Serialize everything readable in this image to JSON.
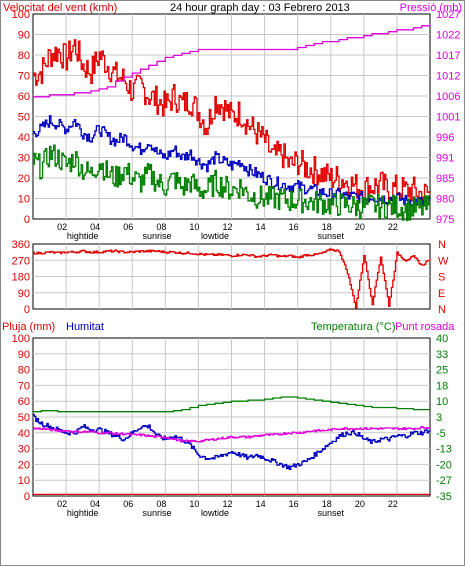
{
  "chart_data": [
    {
      "type": "line",
      "title": "24 hour graph day : 03 Febrero 2013",
      "left_axis_label": "Velocitat del vent (kmh)",
      "right_axis_label": "Pressió (mb)",
      "left_ylim": [
        0,
        100
      ],
      "right_ylim": [
        975,
        1027
      ],
      "left_ticks": [
        "0",
        "10",
        "20",
        "30",
        "40",
        "50",
        "60",
        "70",
        "80",
        "90",
        "100"
      ],
      "right_ticks": [
        "975",
        "980",
        "985",
        "991",
        "996",
        "1001",
        "1006",
        "1012",
        "1017",
        "1022",
        "1027"
      ],
      "x_ticks": [
        "02",
        "04",
        "06",
        "08",
        "10",
        "12",
        "14",
        "16",
        "18",
        "20",
        "22",
        ""
      ],
      "events": [
        {
          "label": "hightide",
          "hour": 3.0
        },
        {
          "label": "sunrise",
          "hour": 7.5
        },
        {
          "label": "lowtide",
          "hour": 11.0
        },
        {
          "label": "sunset",
          "hour": 18.0
        }
      ],
      "x": [
        0,
        0.5,
        1,
        1.5,
        2,
        2.5,
        3,
        3.5,
        4,
        4.5,
        5,
        5.5,
        6,
        6.5,
        7,
        7.5,
        8,
        8.5,
        9,
        9.5,
        10,
        10.5,
        11,
        11.5,
        12,
        12.5,
        13,
        13.5,
        14,
        14.5,
        15,
        15.5,
        16,
        16.5,
        17,
        17.5,
        18,
        18.5,
        19,
        19.5,
        20,
        20.5,
        21,
        21.5,
        22,
        22.5,
        23,
        23.5,
        24
      ],
      "series": [
        {
          "name": "gust",
          "color": "#e00000",
          "axis": "left",
          "values": [
            70,
            72,
            80,
            82,
            78,
            85,
            75,
            72,
            80,
            75,
            70,
            68,
            62,
            65,
            60,
            58,
            55,
            60,
            56,
            58,
            52,
            45,
            58,
            55,
            50,
            52,
            46,
            42,
            38,
            30,
            32,
            26,
            28,
            25,
            24,
            22,
            20,
            20,
            18,
            16,
            15,
            16,
            17,
            14,
            15,
            14,
            14,
            12,
            13
          ]
        },
        {
          "name": "average",
          "color": "#0000c0",
          "axis": "left",
          "values": [
            42,
            44,
            48,
            46,
            44,
            48,
            42,
            40,
            44,
            40,
            38,
            40,
            36,
            34,
            38,
            32,
            30,
            34,
            30,
            32,
            28,
            26,
            30,
            28,
            26,
            28,
            24,
            22,
            20,
            18,
            17,
            16,
            16,
            15,
            14,
            13,
            12,
            12,
            11,
            11,
            10,
            11,
            10,
            10,
            10,
            9,
            9,
            8,
            9
          ]
        },
        {
          "name": "minimum",
          "color": "#008000",
          "axis": "left",
          "values": [
            28,
            25,
            32,
            30,
            26,
            30,
            24,
            22,
            28,
            22,
            20,
            24,
            20,
            18,
            22,
            18,
            16,
            20,
            15,
            18,
            14,
            14,
            18,
            16,
            14,
            16,
            12,
            11,
            10,
            10,
            10,
            9,
            9,
            9,
            8,
            8,
            7,
            7,
            7,
            6,
            6,
            7,
            6,
            6,
            6,
            5,
            5,
            5,
            6
          ]
        },
        {
          "name": "pressure",
          "color": "#e000e0",
          "axis": "right",
          "values": [
            1006,
            1006,
            1006.5,
            1006.5,
            1006.5,
            1007,
            1007,
            1007.5,
            1008,
            1008.5,
            1010,
            1011,
            1012,
            1013,
            1014,
            1015,
            1016,
            1016.5,
            1017,
            1017.5,
            1018,
            1018,
            1018,
            1018,
            1018,
            1018,
            1018,
            1018,
            1018,
            1018,
            1018,
            1018,
            1018.5,
            1019,
            1019.5,
            1020,
            1020,
            1020.5,
            1021,
            1021,
            1021.5,
            1022,
            1022,
            1022.5,
            1023,
            1023,
            1023.5,
            1024,
            1024.5
          ]
        }
      ]
    },
    {
      "type": "line",
      "left_ylim": [
        0,
        360
      ],
      "left_ticks": [
        "0",
        "90",
        "180",
        "270",
        "360"
      ],
      "right_labels": [
        "N",
        "W",
        "S",
        "E",
        "N"
      ],
      "x": [
        0,
        0.5,
        1,
        1.5,
        2,
        2.5,
        3,
        3.5,
        4,
        4.5,
        5,
        5.5,
        6,
        6.5,
        7,
        7.5,
        8,
        8.5,
        9,
        9.5,
        10,
        10.5,
        11,
        11.5,
        12,
        12.5,
        13,
        13.5,
        14,
        14.5,
        15,
        15.5,
        16,
        16.5,
        17,
        17.5,
        18,
        18.5,
        19,
        19.5,
        20,
        20.5,
        21,
        21.5,
        22,
        22.5,
        23,
        23.5,
        24
      ],
      "series": [
        {
          "name": "direction",
          "color": "#e00000",
          "values": [
            310,
            310,
            315,
            310,
            315,
            315,
            320,
            315,
            315,
            320,
            320,
            315,
            315,
            320,
            320,
            320,
            315,
            315,
            310,
            310,
            305,
            300,
            300,
            300,
            295,
            300,
            300,
            290,
            295,
            300,
            290,
            295,
            285,
            300,
            300,
            310,
            330,
            320,
            200,
            10,
            300,
            30,
            290,
            20,
            310,
            270,
            290,
            240,
            280
          ]
        }
      ]
    },
    {
      "type": "line",
      "left_axis_label": "Pluja (mm)",
      "left_axis_label_2": "Humitat",
      "right_axis_label": "Temperatura (°C)",
      "right_axis_label_2": "Punt rosada",
      "left_ylim": [
        0,
        100
      ],
      "right_ylim": [
        -35,
        40
      ],
      "left_ticks": [
        "0",
        "10",
        "20",
        "30",
        "40",
        "50",
        "60",
        "70",
        "80",
        "90",
        "100"
      ],
      "right_ticks": [
        "-35",
        "-27",
        "-20",
        "-13",
        "-5",
        "3",
        "10",
        "18",
        "25",
        "33",
        "40"
      ],
      "x_ticks": [
        "02",
        "04",
        "06",
        "08",
        "10",
        "12",
        "14",
        "16",
        "18",
        "20",
        "22",
        ""
      ],
      "events": [
        {
          "label": "hightide",
          "hour": 3.0
        },
        {
          "label": "sunrise",
          "hour": 7.5
        },
        {
          "label": "lowtide",
          "hour": 11.0
        },
        {
          "label": "sunset",
          "hour": 18.0
        }
      ],
      "x": [
        0,
        0.5,
        1,
        1.5,
        2,
        2.5,
        3,
        3.5,
        4,
        4.5,
        5,
        5.5,
        6,
        6.5,
        7,
        7.5,
        8,
        8.5,
        9,
        9.5,
        10,
        10.5,
        11,
        11.5,
        12,
        12.5,
        13,
        13.5,
        14,
        14.5,
        15,
        15.5,
        16,
        16.5,
        17,
        17.5,
        18,
        18.5,
        19,
        19.5,
        20,
        20.5,
        21,
        21.5,
        22,
        22.5,
        23,
        23.5,
        24
      ],
      "series": [
        {
          "name": "rain",
          "color": "#e00000",
          "axis": "left",
          "values": [
            1,
            1,
            1,
            1,
            1,
            1,
            1,
            1,
            1,
            1,
            1,
            1,
            1,
            1,
            1,
            1,
            1,
            1,
            1,
            1,
            1,
            1,
            1,
            1,
            1,
            1,
            1,
            1,
            1,
            1,
            1,
            1,
            1,
            1,
            1,
            1,
            1,
            1,
            1,
            1,
            1,
            1,
            1,
            1,
            1,
            1,
            1,
            1,
            1
          ]
        },
        {
          "name": "humidity",
          "color": "#0000c0",
          "axis": "left",
          "values": [
            50,
            46,
            44,
            42,
            40,
            40,
            44,
            42,
            42,
            40,
            38,
            36,
            40,
            44,
            44,
            38,
            36,
            38,
            36,
            32,
            26,
            24,
            24,
            26,
            28,
            26,
            24,
            26,
            24,
            22,
            20,
            18,
            20,
            22,
            26,
            30,
            34,
            38,
            40,
            40,
            36,
            34,
            36,
            36,
            38,
            38,
            40,
            40,
            42
          ]
        },
        {
          "name": "temperature",
          "color": "#008000",
          "axis": "right",
          "values": [
            5,
            5.5,
            5.5,
            5,
            5,
            5,
            5,
            5,
            5,
            5,
            5,
            5,
            5,
            5,
            5,
            5,
            5,
            5.5,
            6,
            7,
            8,
            8.5,
            9,
            9.5,
            10,
            10,
            10.5,
            10.5,
            11,
            11.5,
            12,
            12,
            11.5,
            11,
            10.5,
            10,
            9.5,
            9,
            8.5,
            8,
            7.5,
            7,
            7,
            7,
            6.5,
            6.5,
            6,
            6,
            6
          ]
        },
        {
          "name": "dew_point",
          "color": "#e000e0",
          "axis": "right",
          "values": [
            -3,
            -3,
            -3.5,
            -4,
            -4,
            -4.5,
            -4.5,
            -4.5,
            -5,
            -5,
            -5.5,
            -5.5,
            -6,
            -6,
            -6.5,
            -7,
            -7,
            -8,
            -9,
            -9,
            -9,
            -8.5,
            -8,
            -7.5,
            -7,
            -7,
            -7,
            -6.5,
            -6,
            -6,
            -5.5,
            -5,
            -5,
            -4.5,
            -4,
            -4,
            -3.5,
            -3,
            -3,
            -3,
            -3,
            -3,
            -3,
            -3,
            -3,
            -3,
            -3,
            -2.5,
            -2.5
          ]
        }
      ]
    }
  ]
}
